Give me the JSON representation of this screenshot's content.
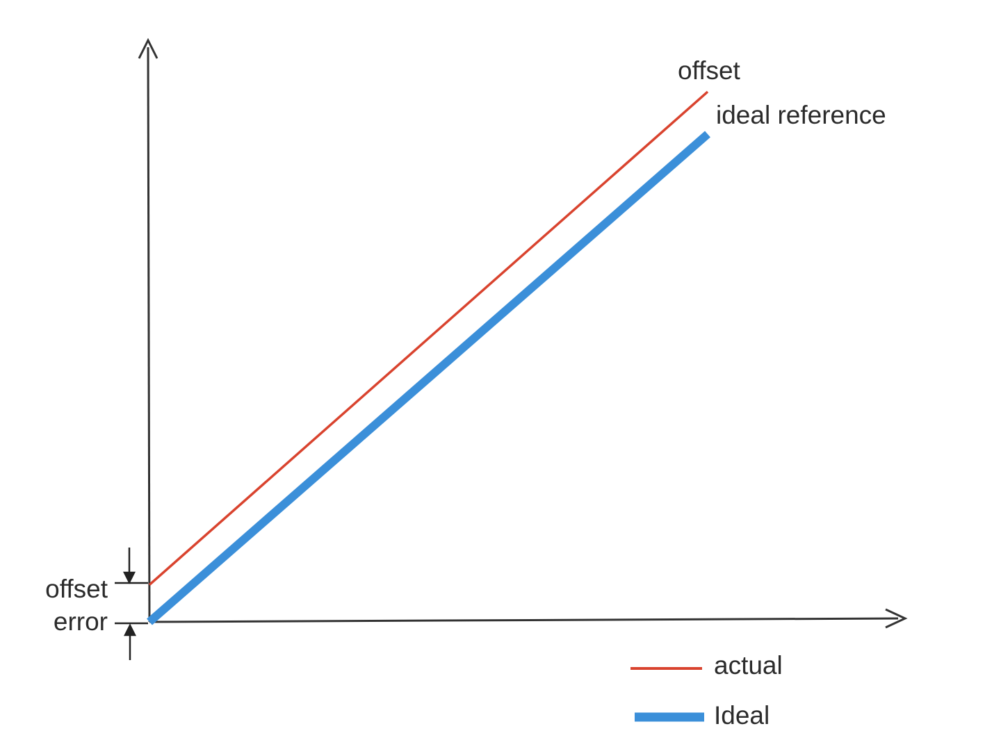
{
  "chart_data": {
    "type": "line",
    "title": "",
    "xlabel": "",
    "ylabel": "",
    "xlim": [
      0,
      1
    ],
    "ylim": [
      0,
      1
    ],
    "grid": false,
    "series": [
      {
        "name": "actual",
        "color": "#d9432e",
        "x": [
          0,
          1
        ],
        "y": [
          0.07,
          1.0
        ]
      },
      {
        "name": "Ideal",
        "color": "#3b8fd9",
        "x": [
          0,
          1
        ],
        "y": [
          0.0,
          0.92
        ]
      }
    ],
    "annotations": {
      "actual_end": "offset",
      "ideal_end": "ideal reference",
      "offset_error_line1": "offset",
      "offset_error_line2": "error"
    },
    "legend": {
      "placement": "bottom-right",
      "entries": [
        "actual",
        "Ideal"
      ]
    }
  }
}
